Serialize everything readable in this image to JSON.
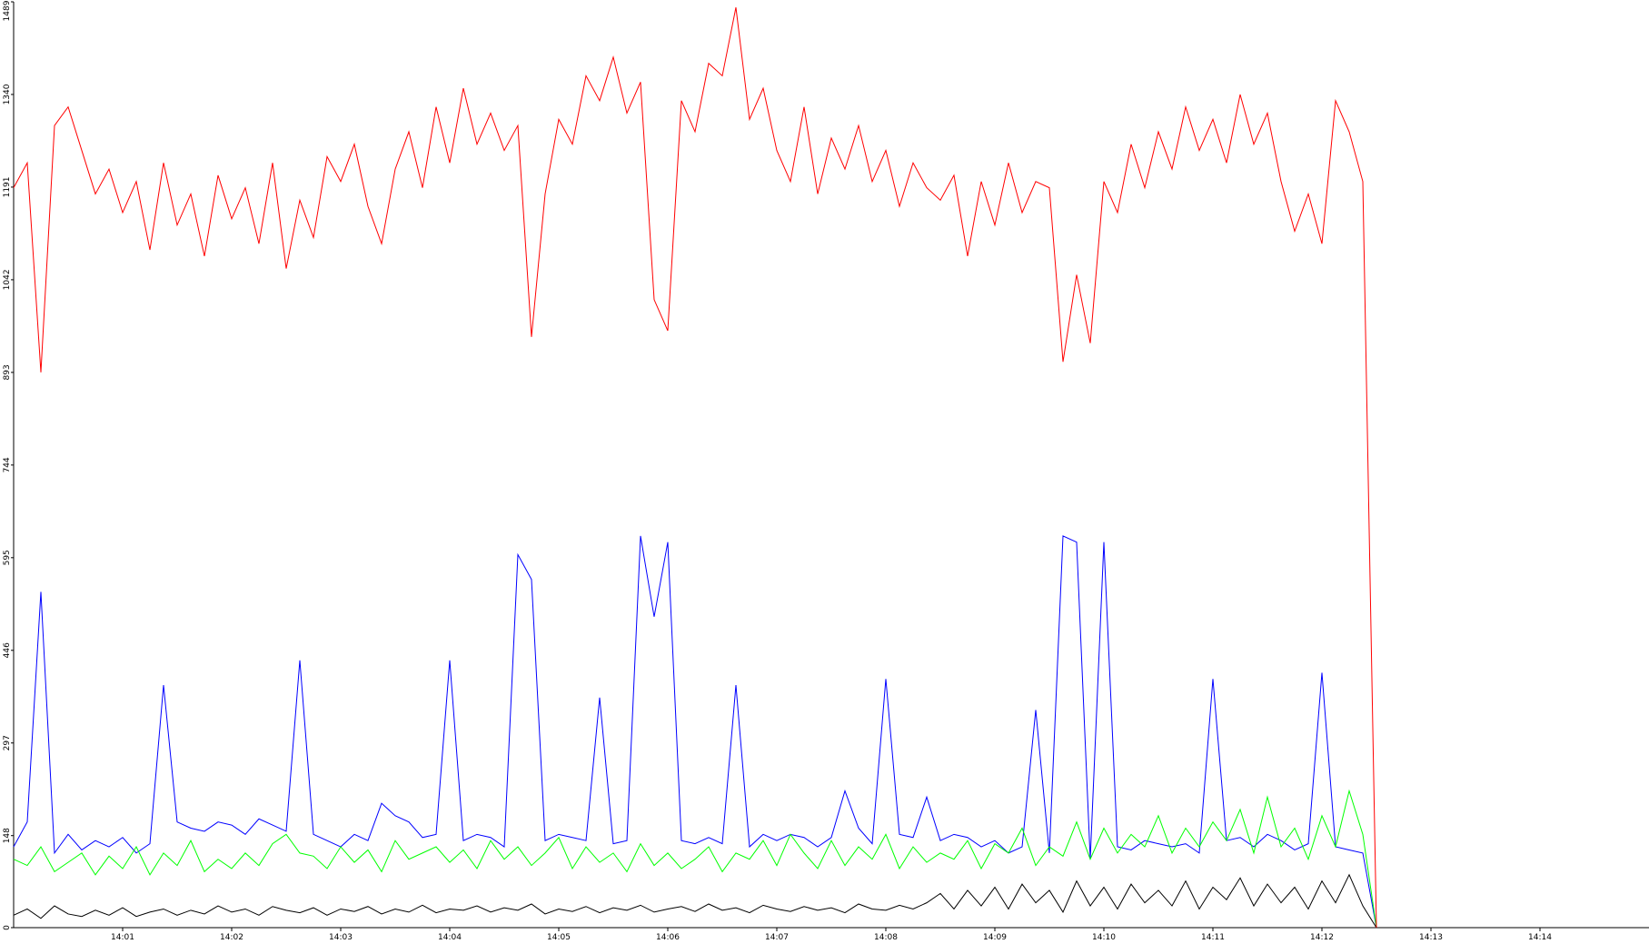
{
  "chart_data": {
    "type": "line",
    "x": [
      840,
      840.125,
      840.25,
      840.375,
      840.5,
      840.625,
      840.75,
      840.875,
      841,
      841.125,
      841.25,
      841.375,
      841.5,
      841.625,
      841.75,
      841.875,
      842,
      842.125,
      842.25,
      842.375,
      842.5,
      842.625,
      842.75,
      842.875,
      843,
      843.125,
      843.25,
      843.375,
      843.5,
      843.625,
      843.75,
      843.875,
      844,
      844.125,
      844.25,
      844.375,
      844.5,
      844.625,
      844.75,
      844.875,
      845,
      845.125,
      845.25,
      845.375,
      845.5,
      845.625,
      845.75,
      845.875,
      846,
      846.125,
      846.25,
      846.375,
      846.5,
      846.625,
      846.75,
      846.875,
      847,
      847.125,
      847.25,
      847.375,
      847.5,
      847.625,
      847.75,
      847.875,
      848,
      848.125,
      848.25,
      848.375,
      848.5,
      848.625,
      848.75,
      848.875,
      849,
      849.125,
      849.25,
      849.375,
      849.5,
      849.625,
      849.75,
      849.875,
      850,
      850.125,
      850.25,
      850.375,
      850.5,
      850.625,
      850.75,
      850.875,
      851,
      851.125,
      851.25,
      851.375,
      851.5,
      851.625,
      851.75,
      851.875,
      852,
      852.125,
      852.25,
      852.375,
      852.5
    ],
    "series": [
      {
        "color": "#0000ff",
        "values": [
          130,
          170,
          540,
          120,
          150,
          125,
          140,
          130,
          145,
          120,
          135,
          390,
          170,
          160,
          155,
          170,
          165,
          150,
          175,
          165,
          155,
          430,
          150,
          140,
          130,
          150,
          140,
          200,
          180,
          170,
          145,
          150,
          430,
          140,
          150,
          145,
          130,
          600,
          560,
          140,
          150,
          145,
          140,
          370,
          135,
          140,
          630,
          500,
          620,
          140,
          135,
          145,
          135,
          390,
          130,
          150,
          140,
          150,
          145,
          130,
          145,
          220,
          160,
          135,
          400,
          150,
          145,
          210,
          140,
          150,
          145,
          130,
          140,
          120,
          130,
          350,
          120,
          630,
          620,
          110,
          620,
          130,
          125,
          140,
          135,
          130,
          135,
          120,
          400,
          140,
          145,
          130,
          150,
          140,
          125,
          135,
          410,
          130,
          125,
          120,
          0
        ]
      },
      {
        "color": "#00ff00",
        "values": [
          110,
          100,
          130,
          90,
          105,
          120,
          85,
          115,
          95,
          130,
          85,
          120,
          100,
          140,
          90,
          110,
          95,
          120,
          100,
          135,
          150,
          120,
          115,
          95,
          130,
          105,
          125,
          90,
          140,
          110,
          120,
          130,
          105,
          125,
          95,
          140,
          110,
          130,
          100,
          120,
          145,
          95,
          130,
          105,
          120,
          90,
          135,
          100,
          120,
          95,
          110,
          130,
          90,
          120,
          110,
          140,
          100,
          150,
          120,
          95,
          140,
          100,
          130,
          110,
          150,
          95,
          130,
          105,
          120,
          110,
          140,
          95,
          135,
          120,
          160,
          100,
          130,
          115,
          170,
          110,
          160,
          120,
          150,
          130,
          180,
          120,
          160,
          130,
          170,
          140,
          190,
          120,
          210,
          130,
          160,
          110,
          180,
          130,
          220,
          150,
          0
        ]
      },
      {
        "color": "#000000",
        "values": [
          20,
          30,
          15,
          35,
          22,
          18,
          28,
          20,
          32,
          18,
          25,
          30,
          20,
          28,
          22,
          35,
          25,
          30,
          20,
          34,
          28,
          24,
          32,
          20,
          30,
          26,
          34,
          22,
          30,
          25,
          36,
          24,
          30,
          28,
          35,
          25,
          32,
          28,
          38,
          22,
          30,
          26,
          34,
          24,
          32,
          28,
          36,
          25,
          30,
          34,
          26,
          38,
          28,
          32,
          24,
          36,
          30,
          26,
          34,
          28,
          32,
          24,
          38,
          30,
          28,
          36,
          30,
          40,
          55,
          30,
          60,
          35,
          65,
          30,
          70,
          40,
          60,
          25,
          75,
          35,
          65,
          30,
          70,
          40,
          60,
          35,
          75,
          30,
          65,
          45,
          80,
          35,
          70,
          40,
          65,
          30,
          75,
          40,
          85,
          35,
          0
        ]
      },
      {
        "color": "#ff0000",
        "values": [
          1190,
          1230,
          893,
          1290,
          1320,
          1250,
          1180,
          1220,
          1150,
          1200,
          1090,
          1230,
          1130,
          1180,
          1080,
          1210,
          1140,
          1190,
          1100,
          1230,
          1060,
          1170,
          1110,
          1240,
          1200,
          1260,
          1160,
          1100,
          1220,
          1280,
          1190,
          1320,
          1230,
          1350,
          1260,
          1310,
          1250,
          1290,
          950,
          1180,
          1300,
          1260,
          1370,
          1330,
          1400,
          1310,
          1360,
          1010,
          960,
          1330,
          1280,
          1390,
          1370,
          1480,
          1300,
          1350,
          1250,
          1200,
          1320,
          1180,
          1270,
          1220,
          1290,
          1200,
          1250,
          1160,
          1230,
          1190,
          1170,
          1210,
          1080,
          1200,
          1130,
          1230,
          1150,
          1200,
          1190,
          910,
          1050,
          940,
          1200,
          1150,
          1260,
          1190,
          1280,
          1220,
          1320,
          1250,
          1300,
          1230,
          1340,
          1260,
          1310,
          1200,
          1120,
          1180,
          1100,
          1330,
          1280,
          1200,
          0
        ]
      }
    ],
    "ylim": [
      0,
      1489
    ],
    "yticks": [
      0,
      148,
      297,
      446,
      595,
      744,
      893,
      1042,
      1191,
      1340,
      1489
    ],
    "xlim": [
      840,
      855
    ],
    "xticks": [
      {
        "value": 841,
        "label": "14:01"
      },
      {
        "value": 842,
        "label": "14:02"
      },
      {
        "value": 843,
        "label": "14:03"
      },
      {
        "value": 844,
        "label": "14:04"
      },
      {
        "value": 845,
        "label": "14:05"
      },
      {
        "value": 846,
        "label": "14:06"
      },
      {
        "value": 847,
        "label": "14:07"
      },
      {
        "value": 848,
        "label": "14:08"
      },
      {
        "value": 849,
        "label": "14:09"
      },
      {
        "value": 850,
        "label": "14:10"
      },
      {
        "value": 851,
        "label": "14:11"
      },
      {
        "value": 852,
        "label": "14:12"
      },
      {
        "value": 853,
        "label": "14:13"
      },
      {
        "value": 854,
        "label": "14:14"
      }
    ]
  }
}
